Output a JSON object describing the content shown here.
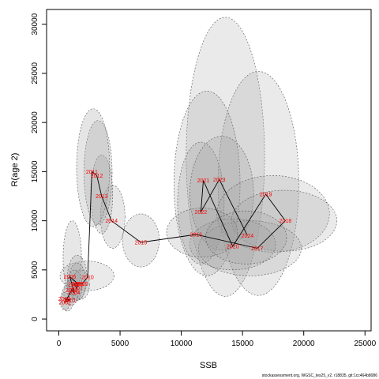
{
  "chart_data": {
    "type": "scatter",
    "xlabel": "SSB",
    "ylabel": "R(age 2)",
    "xlim": [
      -1000,
      25500
    ],
    "ylim": [
      -1200,
      31500
    ],
    "x_ticks": [
      0,
      5000,
      10000,
      15000,
      20000,
      25000
    ],
    "y_ticks": [
      0,
      5000,
      10000,
      15000,
      20000,
      25000,
      30000
    ],
    "grid": false,
    "line_color": "#000000",
    "label_color": "#ff0000",
    "ellipse_fill": "#a0a0a0",
    "ellipse_stroke": "#555555",
    "points": [
      {
        "year": "2000",
        "x": 450,
        "y": 2050
      },
      {
        "year": "2001",
        "x": 900,
        "y": 1950
      },
      {
        "year": "2002",
        "x": 500,
        "y": 1700
      },
      {
        "year": "2003",
        "x": 1050,
        "y": 2950
      },
      {
        "year": "2004",
        "x": 1250,
        "y": 2700
      },
      {
        "year": "2005",
        "x": 900,
        "y": 4300
      },
      {
        "year": "2006",
        "x": 1550,
        "y": 3600
      },
      {
        "year": "2007",
        "x": 1450,
        "y": 3150
      },
      {
        "year": "2008",
        "x": 1250,
        "y": 3550
      },
      {
        "year": "2009",
        "x": 1900,
        "y": 3600
      },
      {
        "year": "2010",
        "x": 2350,
        "y": 4250
      },
      {
        "year": "2011",
        "x": 2700,
        "y": 15000
      },
      {
        "year": "2012",
        "x": 3100,
        "y": 14600
      },
      {
        "year": "2013",
        "x": 3500,
        "y": 12500
      },
      {
        "year": "2014",
        "x": 4300,
        "y": 10000
      },
      {
        "year": "2015",
        "x": 6700,
        "y": 7800
      },
      {
        "year": "2016",
        "x": 11200,
        "y": 8600
      },
      {
        "year": "2017",
        "x": 16200,
        "y": 7200
      },
      {
        "year": "2018",
        "x": 18500,
        "y": 10000
      },
      {
        "year": "2019",
        "x": 16900,
        "y": 12700
      },
      {
        "year": "2020",
        "x": 14200,
        "y": 7400
      },
      {
        "year": "2021",
        "x": 11800,
        "y": 14100
      },
      {
        "year": "2022",
        "x": 11600,
        "y": 10900
      },
      {
        "year": "2023",
        "x": 13100,
        "y": 14200
      },
      {
        "year": "2024",
        "x": 15400,
        "y": 8500
      }
    ],
    "ellipses": [
      {
        "cx": 13600,
        "cy": 16500,
        "rx": 3200,
        "ry": 14200,
        "alpha": 0.22
      },
      {
        "cx": 16300,
        "cy": 13800,
        "rx": 3300,
        "ry": 11400,
        "alpha": 0.22
      },
      {
        "cx": 12100,
        "cy": 13800,
        "rx": 2700,
        "ry": 9400,
        "alpha": 0.24
      },
      {
        "cx": 11600,
        "cy": 11800,
        "rx": 1900,
        "ry": 6200,
        "alpha": 0.26
      },
      {
        "cx": 13300,
        "cy": 12800,
        "rx": 2600,
        "ry": 5800,
        "alpha": 0.26
      },
      {
        "cx": 17500,
        "cy": 10700,
        "rx": 4600,
        "ry": 3900,
        "alpha": 0.22
      },
      {
        "cx": 18400,
        "cy": 10000,
        "rx": 4300,
        "ry": 3100,
        "alpha": 0.22
      },
      {
        "cx": 15600,
        "cy": 7200,
        "rx": 4200,
        "ry": 2800,
        "alpha": 0.22
      },
      {
        "cx": 14200,
        "cy": 7600,
        "rx": 3500,
        "ry": 2600,
        "alpha": 0.24
      },
      {
        "cx": 11700,
        "cy": 8800,
        "rx": 2900,
        "ry": 2500,
        "alpha": 0.24
      },
      {
        "cx": 15300,
        "cy": 8300,
        "rx": 3300,
        "ry": 2700,
        "alpha": 0.22
      },
      {
        "cx": 6700,
        "cy": 8000,
        "rx": 1500,
        "ry": 2700,
        "alpha": 0.25
      },
      {
        "cx": 4400,
        "cy": 10400,
        "rx": 1000,
        "ry": 3200,
        "alpha": 0.25
      },
      {
        "cx": 3500,
        "cy": 12700,
        "rx": 900,
        "ry": 4000,
        "alpha": 0.27
      },
      {
        "cx": 3200,
        "cy": 14900,
        "rx": 1150,
        "ry": 5300,
        "alpha": 0.27
      },
      {
        "cx": 2800,
        "cy": 15400,
        "rx": 1350,
        "ry": 6000,
        "alpha": 0.27
      },
      {
        "cx": 2300,
        "cy": 4400,
        "rx": 2200,
        "ry": 1500,
        "alpha": 0.22
      },
      {
        "cx": 1100,
        "cy": 6200,
        "rx": 750,
        "ry": 3800,
        "alpha": 0.25
      },
      {
        "cx": 1500,
        "cy": 4200,
        "rx": 800,
        "ry": 2300,
        "alpha": 0.26
      },
      {
        "cx": 1500,
        "cy": 3800,
        "rx": 700,
        "ry": 1900,
        "alpha": 0.28
      },
      {
        "cx": 1300,
        "cy": 3400,
        "rx": 600,
        "ry": 1600,
        "alpha": 0.28
      },
      {
        "cx": 1800,
        "cy": 3500,
        "rx": 700,
        "ry": 1500,
        "alpha": 0.28
      },
      {
        "cx": 1000,
        "cy": 2700,
        "rx": 600,
        "ry": 1300,
        "alpha": 0.3
      },
      {
        "cx": 700,
        "cy": 2100,
        "rx": 500,
        "ry": 1300,
        "alpha": 0.3
      },
      {
        "cx": 500,
        "cy": 1800,
        "rx": 400,
        "ry": 900,
        "alpha": 0.3
      }
    ]
  },
  "footer": {
    "source": "stockassessment.org, WGSC_tes25_v2, r18835, git:1cc464b8086"
  }
}
